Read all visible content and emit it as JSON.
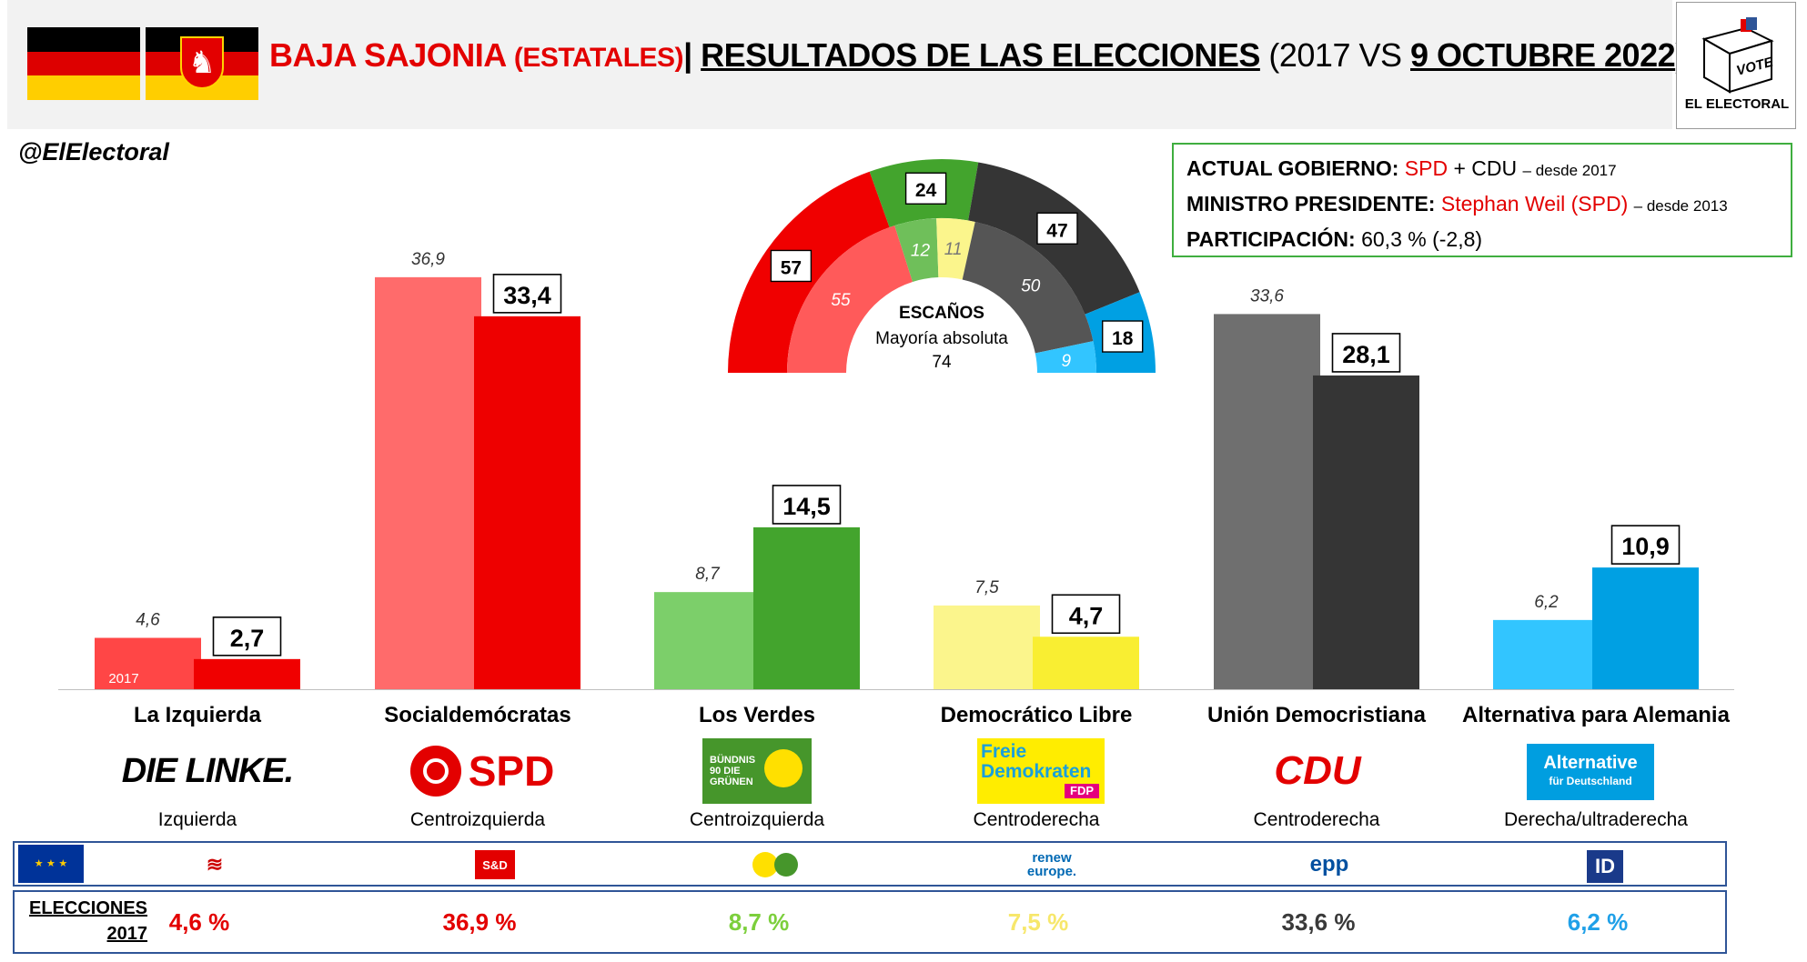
{
  "header": {
    "title_region": "BAJA SAJONIA",
    "title_region_sub": "(ESTATALES)",
    "title_sep": "|",
    "title_main": "RESULTADOS DE LAS ELECCIONES",
    "title_paren_open": "(2017 VS",
    "title_date": "9 OCTUBRE 2022",
    "title_paren_close": ")",
    "vote_word": "VOTE",
    "brand": "EL ELECTORAL"
  },
  "handle": "@ElElectoral",
  "info": {
    "gov_label": "ACTUAL GOBIERNO:",
    "gov_party1": "SPD",
    "gov_plus": "+ CDU",
    "gov_since": "– desde 2017",
    "mp_label": "MINISTRO PRESIDENTE:",
    "mp_name": "Stephan Weil (SPD)",
    "mp_since": "– desde 2013",
    "turnout_label": "PARTICIPACIÓN:",
    "turnout_value": "60,3 % (-2,8)"
  },
  "chart_data": [
    {
      "type": "bar",
      "categories": [
        "La Izquierda",
        "Socialdemócratas",
        "Los Verdes",
        "Democrático Libre",
        "Unión Democristiana",
        "Alternativa para Alemania"
      ],
      "series": [
        {
          "name": "2017",
          "values": [
            4.6,
            36.9,
            8.7,
            7.5,
            33.6,
            6.2
          ],
          "labels": [
            "4,6",
            "36,9",
            "8,7",
            "7,5",
            "33,6",
            "6,2"
          ],
          "colors": [
            "#ff4646",
            "#ff6b6b",
            "#7ccf6a",
            "#fbf58c",
            "#6f6f6f",
            "#32c5ff"
          ]
        },
        {
          "name": "2022",
          "values": [
            2.7,
            33.4,
            14.5,
            4.7,
            28.1,
            10.9
          ],
          "labels": [
            "2,7",
            "33,4",
            "14,5",
            "4,7",
            "28,1",
            "10,9"
          ],
          "colors": [
            "#f00000",
            "#ee0000",
            "#43a42d",
            "#f9ee32",
            "#353535",
            "#00a0e3"
          ]
        }
      ],
      "ylim": [
        0,
        40
      ]
    },
    {
      "type": "pie",
      "title": "ESCAÑOS",
      "subtitle": "Mayoría absoluta",
      "majority": "74",
      "outer_2022": [
        {
          "party": "SPD",
          "value": 57,
          "color": "#f00000"
        },
        {
          "party": "Grüne",
          "value": 24,
          "color": "#43a42d"
        },
        {
          "party": "CDU",
          "value": 47,
          "color": "#353535"
        },
        {
          "party": "AfD",
          "value": 18,
          "color": "#00a0e3"
        }
      ],
      "inner_2017": [
        {
          "party": "SPD",
          "value": 55,
          "color": "#ff5a5a"
        },
        {
          "party": "Grüne",
          "value": 12,
          "color": "#6fbf5a"
        },
        {
          "party": "FDP",
          "value": 11,
          "color": "#fbf58c"
        },
        {
          "party": "CDU",
          "value": 50,
          "color": "#555555"
        },
        {
          "party": "AfD",
          "value": 9,
          "color": "#32c5ff"
        }
      ]
    }
  ],
  "bar_note": "2017",
  "parties": [
    {
      "name": "La Izquierda",
      "ideology": "Izquierda",
      "logo": "DIE LINKE.",
      "eu": "linke-icon",
      "res2017": "4,6 %",
      "color": "#e30000"
    },
    {
      "name": "Socialdemócratas",
      "ideology": "Centroizquierda",
      "logo": "SPD",
      "eu": "S&D",
      "res2017": "36,9 %",
      "color": "#e30000"
    },
    {
      "name": "Los Verdes",
      "ideology": "Centroizquierda",
      "logo": "BÜNDNIS 90 DIE GRÜNEN",
      "eu": "greens-icon",
      "res2017": "8,7 %",
      "color": "#7ccf3c"
    },
    {
      "name": "Democrático Libre",
      "ideology": "Centroderecha",
      "logo": "Freie Demokraten",
      "logo2": "FDP",
      "eu": "renew",
      "eu2": "europe.",
      "res2017": "7,5 %",
      "color": "#f7e76b"
    },
    {
      "name": "Unión Democristiana",
      "ideology": "Centroderecha",
      "logo": "CDU",
      "eu": "epp",
      "res2017": "33,6 %",
      "color": "#3a3a3a"
    },
    {
      "name": "Alternativa para Alemania",
      "ideology": "Derecha/ultraderecha",
      "logo": "Alternative",
      "logo2": "für Deutschland",
      "eu": "ID",
      "res2017": "6,2 %",
      "color": "#1fa0e8"
    }
  ],
  "results_label_1": "ELECCIONES",
  "results_label_2": "2017"
}
